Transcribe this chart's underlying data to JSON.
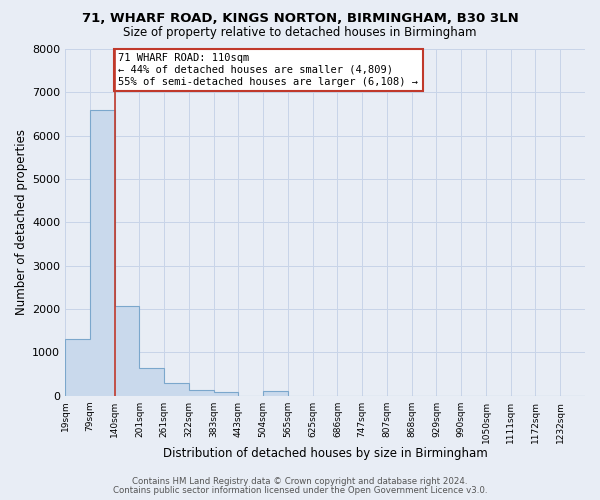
{
  "title": "71, WHARF ROAD, KINGS NORTON, BIRMINGHAM, B30 3LN",
  "subtitle": "Size of property relative to detached houses in Birmingham",
  "xlabel": "Distribution of detached houses by size in Birmingham",
  "ylabel": "Number of detached properties",
  "bin_labels": [
    "19sqm",
    "79sqm",
    "140sqm",
    "201sqm",
    "261sqm",
    "322sqm",
    "383sqm",
    "443sqm",
    "504sqm",
    "565sqm",
    "625sqm",
    "686sqm",
    "747sqm",
    "807sqm",
    "868sqm",
    "929sqm",
    "990sqm",
    "1050sqm",
    "1111sqm",
    "1172sqm",
    "1232sqm"
  ],
  "bar_values": [
    1300,
    6600,
    2080,
    650,
    300,
    140,
    90,
    0,
    110,
    0,
    0,
    0,
    0,
    0,
    0,
    0,
    0,
    0,
    0,
    0,
    0
  ],
  "bar_color": "#c9d9ec",
  "bar_edge_color": "#7ba7cc",
  "vline_color": "#c0392b",
  "annotation_text": "71 WHARF ROAD: 110sqm\n← 44% of detached houses are smaller (4,809)\n55% of semi-detached houses are larger (6,108) →",
  "annotation_box_color": "white",
  "annotation_box_edgecolor": "#c0392b",
  "ylim": [
    0,
    8000
  ],
  "yticks": [
    0,
    1000,
    2000,
    3000,
    4000,
    5000,
    6000,
    7000,
    8000
  ],
  "grid_color": "#c8d4e8",
  "bg_color": "#e8edf5",
  "footer1": "Contains HM Land Registry data © Crown copyright and database right 2024.",
  "footer2": "Contains public sector information licensed under the Open Government Licence v3.0."
}
